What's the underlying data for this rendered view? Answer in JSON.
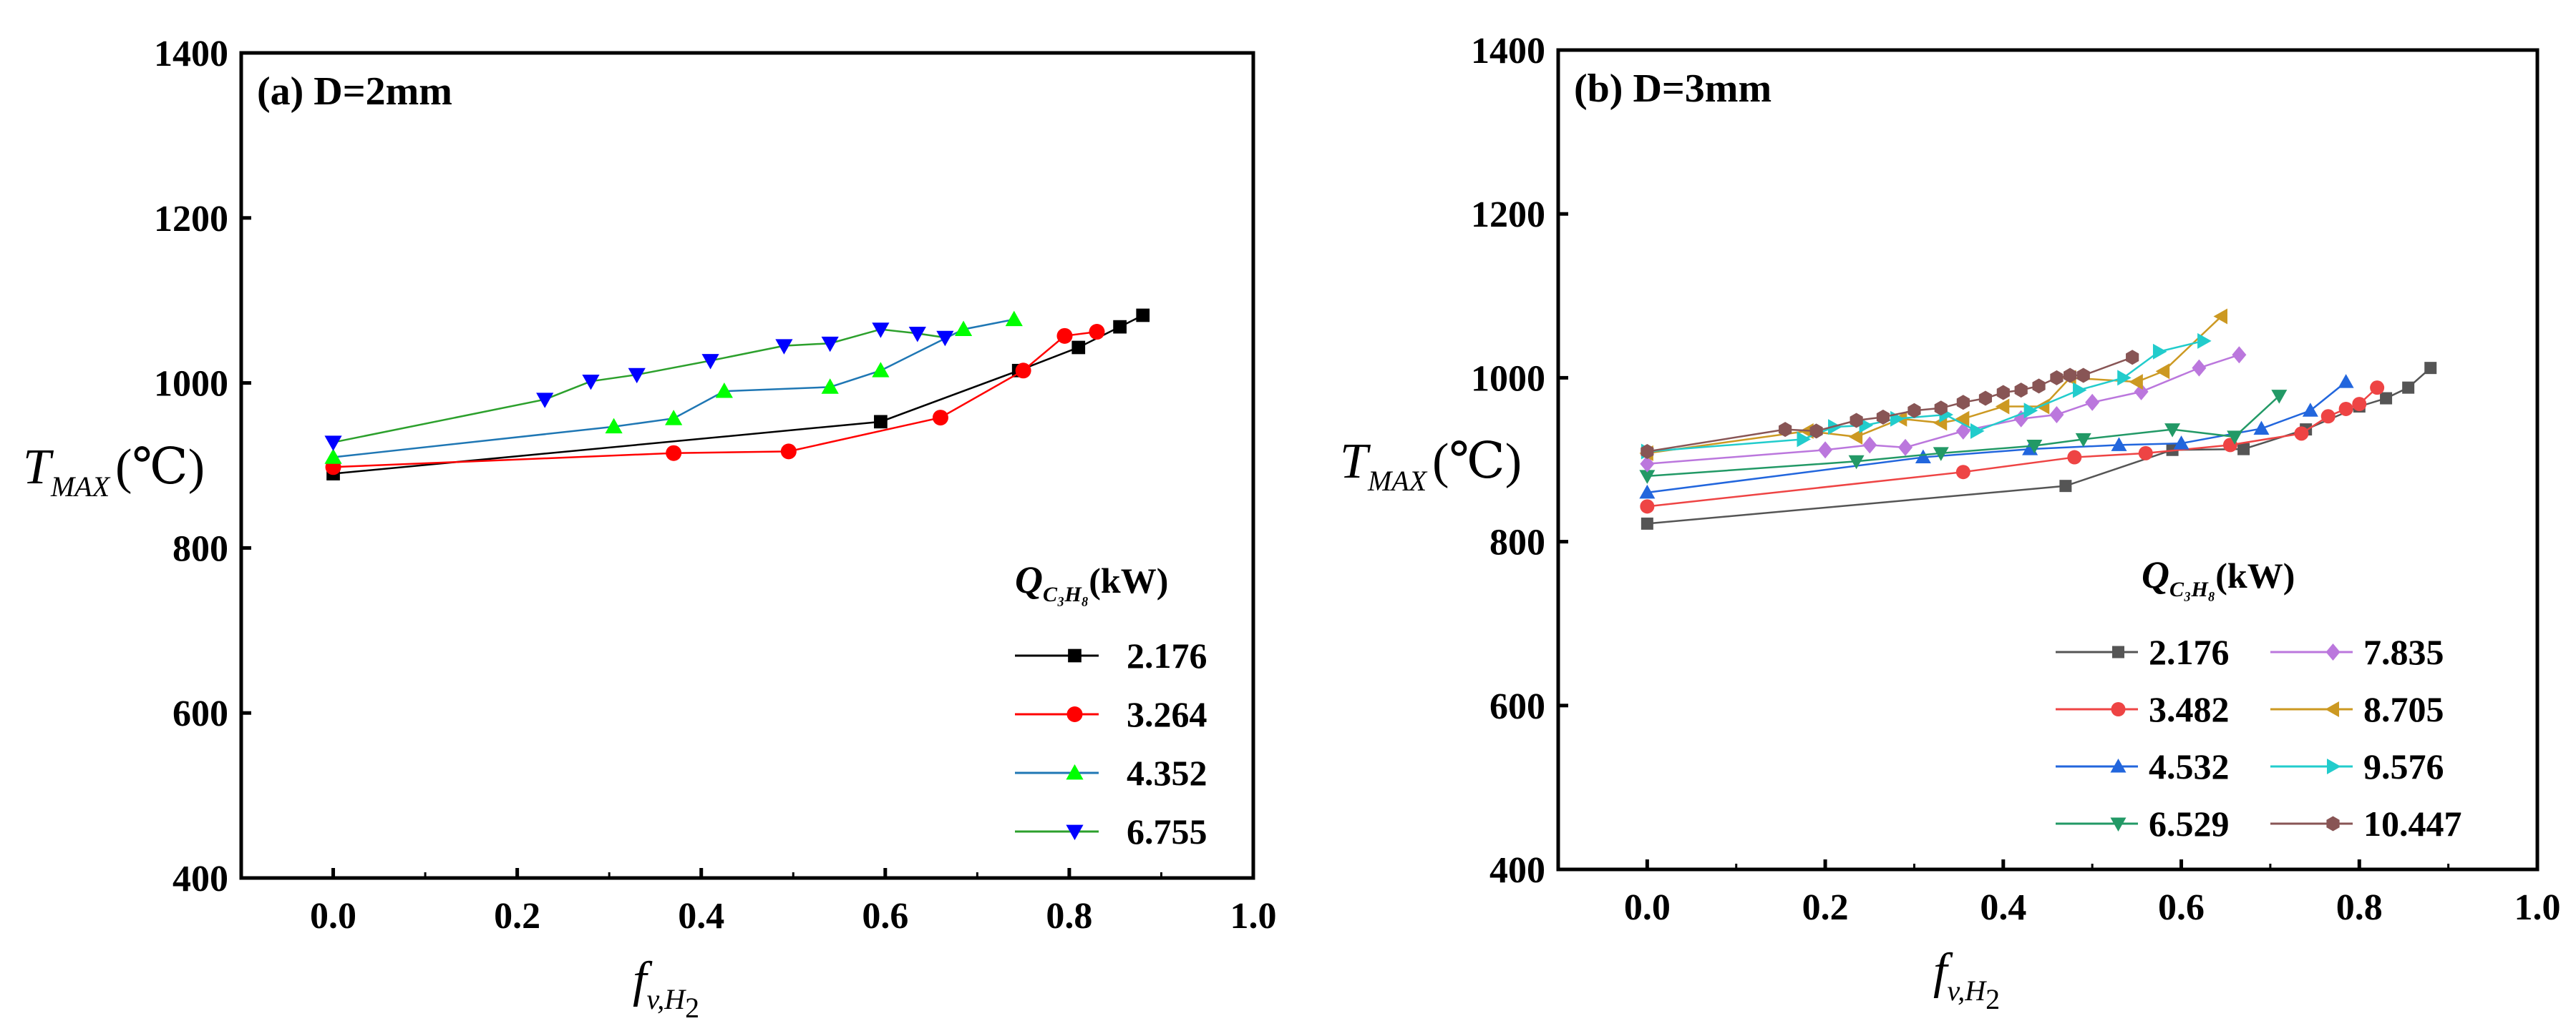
{
  "chart_data": [
    {
      "type": "line",
      "title": "(a) D=2mm",
      "xlabel": "f_v,H2",
      "ylabel": "T_MAX(℃)",
      "xlim": [
        -0.1,
        1.0
      ],
      "ylim": [
        400,
        1400
      ],
      "xticks": [
        "0.0",
        "0.2",
        "0.4",
        "0.6",
        "0.8",
        "1.0"
      ],
      "yticks": [
        "400",
        "600",
        "800",
        "1000",
        "1200",
        "1400"
      ],
      "ylabel_parts": {
        "main": "T",
        "sub": "MAX",
        "unit": "(℃)"
      },
      "xlabel_parts": {
        "main": "f",
        "sub": "v,H",
        "subsub": "2"
      },
      "legend_title": {
        "main": "Q",
        "sub": "C₃H₈",
        "unit": "(kW)"
      },
      "legend_position": "bottom-right",
      "series": [
        {
          "name": "2.176",
          "color": "#000000",
          "marker": "square",
          "x": [
            0.0,
            0.595,
            0.745,
            0.81,
            0.855,
            0.88
          ],
          "y": [
            890,
            953,
            1015,
            1043,
            1068,
            1082
          ]
        },
        {
          "name": "3.264",
          "color": "#ff0000",
          "marker": "circle",
          "x": [
            0.0,
            0.37,
            0.495,
            0.66,
            0.75,
            0.795,
            0.83
          ],
          "y": [
            898,
            915,
            917,
            958,
            1015,
            1057,
            1062
          ]
        },
        {
          "name": "4.352",
          "color": "#00ff00",
          "line_color": "#1f77b4",
          "marker": "triangle-up",
          "x": [
            0.0,
            0.305,
            0.37,
            0.425,
            0.54,
            0.595,
            0.685,
            0.74
          ],
          "y": [
            910,
            947,
            957,
            990,
            995,
            1015,
            1065,
            1077
          ]
        },
        {
          "name": "6.755",
          "color": "#0000ff",
          "line_color": "#2ca02c",
          "marker": "triangle-down",
          "x": [
            0.0,
            0.23,
            0.28,
            0.33,
            0.41,
            0.49,
            0.54,
            0.595,
            0.635,
            0.665
          ],
          "y": [
            928,
            980,
            1002,
            1010,
            1027,
            1045,
            1048,
            1065,
            1060,
            1055
          ]
        }
      ]
    },
    {
      "type": "line",
      "title": "(b) D=3mm",
      "xlabel": "f_v,H2",
      "ylabel": "T_MAX(℃)",
      "xlim": [
        -0.1,
        1.0
      ],
      "ylim": [
        400,
        1400
      ],
      "xticks": [
        "0.0",
        "0.2",
        "0.4",
        "0.6",
        "0.8",
        "1.0"
      ],
      "yticks": [
        "400",
        "600",
        "800",
        "1000",
        "1200",
        "1400"
      ],
      "ylabel_parts": {
        "main": "T",
        "sub": "MAX",
        "unit": "(℃)"
      },
      "xlabel_parts": {
        "main": "f",
        "sub": "v,H",
        "subsub": "2"
      },
      "legend_title": {
        "main": "Q",
        "sub": "C₃H₈",
        "unit": "(kW)"
      },
      "legend_position": "bottom-right",
      "series": [
        {
          "name": "2.176",
          "color": "#555555",
          "marker": "square",
          "x": [
            0.0,
            0.47,
            0.59,
            0.67,
            0.74,
            0.8,
            0.83,
            0.855,
            0.88
          ],
          "y": [
            822,
            868,
            912,
            913,
            937,
            965,
            975,
            988,
            1012
          ]
        },
        {
          "name": "3.482",
          "color": "#ee4444",
          "marker": "circle",
          "x": [
            0.0,
            0.355,
            0.48,
            0.56,
            0.655,
            0.735,
            0.765,
            0.785,
            0.8,
            0.82
          ],
          "y": [
            843,
            885,
            903,
            908,
            918,
            932,
            953,
            962,
            968,
            988
          ]
        },
        {
          "name": "4.532",
          "color": "#2266dd",
          "marker": "triangle-up",
          "x": [
            0.0,
            0.31,
            0.43,
            0.53,
            0.6,
            0.69,
            0.745,
            0.785
          ],
          "y": [
            860,
            903,
            913,
            918,
            920,
            938,
            960,
            995
          ]
        },
        {
          "name": "6.529",
          "color": "#229966",
          "marker": "triangle-down",
          "x": [
            0.0,
            0.235,
            0.33,
            0.435,
            0.49,
            0.59,
            0.66,
            0.71
          ],
          "y": [
            880,
            898,
            908,
            917,
            925,
            937,
            928,
            978
          ]
        },
        {
          "name": "7.835",
          "color": "#bb77dd",
          "marker": "diamond",
          "x": [
            0.0,
            0.2,
            0.25,
            0.29,
            0.355,
            0.42,
            0.46,
            0.5,
            0.555,
            0.62,
            0.665
          ],
          "y": [
            895,
            912,
            918,
            915,
            935,
            950,
            955,
            970,
            983,
            1012,
            1028
          ]
        },
        {
          "name": "8.705",
          "color": "#cc9922",
          "marker": "triangle-left",
          "x": [
            0.0,
            0.18,
            0.235,
            0.285,
            0.33,
            0.355,
            0.4,
            0.445,
            0.475,
            0.55,
            0.58,
            0.645
          ],
          "y": [
            908,
            935,
            928,
            950,
            945,
            950,
            965,
            965,
            1000,
            995,
            1008,
            1075
          ]
        },
        {
          "name": "9.576",
          "color": "#22cccc",
          "marker": "triangle-right",
          "x": [
            0.0,
            0.175,
            0.21,
            0.245,
            0.28,
            0.335,
            0.37,
            0.43,
            0.485,
            0.535,
            0.575,
            0.625
          ],
          "y": [
            910,
            925,
            940,
            942,
            950,
            955,
            935,
            960,
            985,
            1000,
            1032,
            1045
          ]
        },
        {
          "name": "10.447",
          "color": "#885555",
          "marker": "hexagon",
          "x": [
            0.0,
            0.155,
            0.19,
            0.235,
            0.265,
            0.3,
            0.33,
            0.355,
            0.38,
            0.4,
            0.42,
            0.44,
            0.46,
            0.475,
            0.49,
            0.545
          ],
          "y": [
            910,
            937,
            935,
            948,
            952,
            960,
            963,
            970,
            975,
            982,
            985,
            990,
            1000,
            1003,
            1003,
            1025
          ]
        }
      ]
    }
  ]
}
